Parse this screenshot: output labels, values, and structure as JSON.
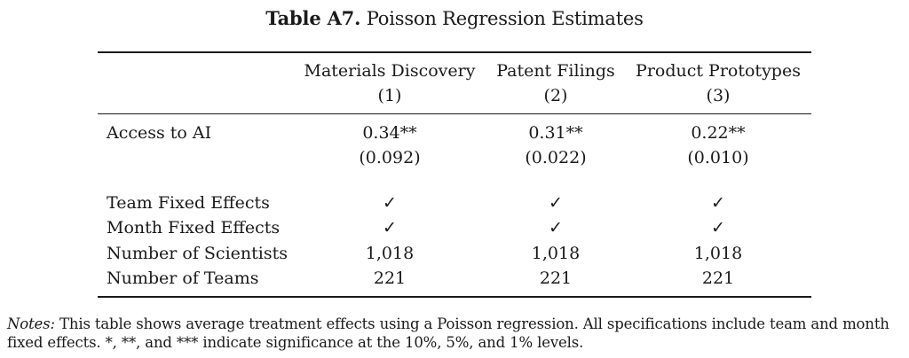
{
  "title": {
    "label": "Table A7.",
    "text": "Poisson Regression Estimates"
  },
  "columns": [
    {
      "name": "Materials Discovery",
      "number": "(1)"
    },
    {
      "name": "Patent Filings",
      "number": "(2)"
    },
    {
      "name": "Product Prototypes",
      "number": "(3)"
    }
  ],
  "rows": {
    "access_to_ai": {
      "label": "Access to AI",
      "estimates": [
        "0.34**",
        "0.31**",
        "0.22**"
      ],
      "std_errors": [
        "(0.092)",
        "(0.022)",
        "(0.010)"
      ]
    },
    "team_fe": {
      "label": "Team Fixed Effects",
      "values": [
        "✓",
        "✓",
        "✓"
      ]
    },
    "month_fe": {
      "label": "Month Fixed Effects",
      "values": [
        "✓",
        "✓",
        "✓"
      ]
    },
    "num_scientists": {
      "label": "Number of Scientists",
      "values": [
        "1,018",
        "1,018",
        "1,018"
      ]
    },
    "num_teams": {
      "label": "Number of Teams",
      "values": [
        "221",
        "221",
        "221"
      ]
    }
  },
  "notes": {
    "label": "Notes:",
    "text": "This table shows average treatment effects using a Poisson regression. All specifications include team and month fixed effects. *, **, and *** indicate significance at the 10%, 5%, and 1% levels."
  }
}
